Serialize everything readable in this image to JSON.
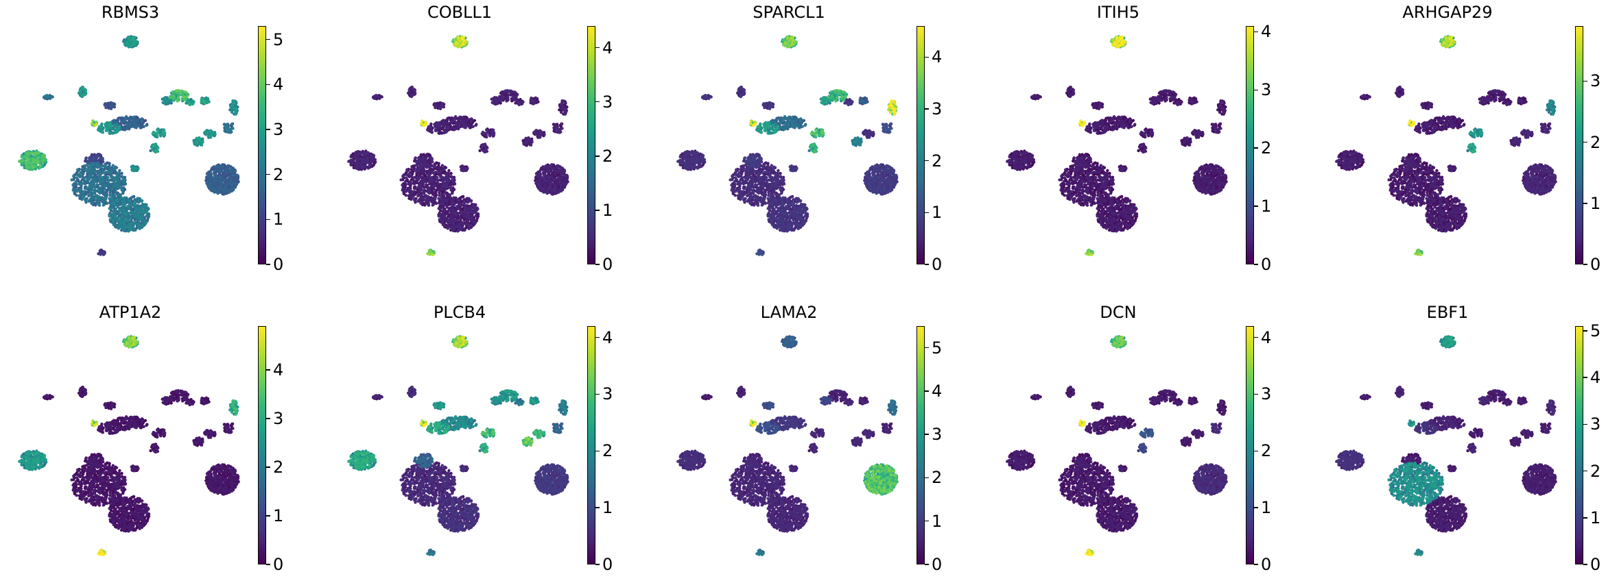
{
  "colors": {
    "background": "#ffffff",
    "cell_floor": "#440154",
    "viridis": [
      "#440154",
      "#482878",
      "#3e4989",
      "#31688e",
      "#26828e",
      "#1f9e89",
      "#35b779",
      "#6ece58",
      "#b5de2b",
      "#fde725"
    ]
  },
  "chart_data": [
    {
      "type": "scatter",
      "title": "RBMS3",
      "colorbar": {
        "vmin": 0,
        "vmax": 5.3,
        "ticks": [
          "0",
          "1",
          "2",
          "3",
          "4",
          "5"
        ]
      },
      "cluster_expression": [
        3.2,
        2.5,
        1.8,
        1.2,
        1.0,
        2.5,
        0.8,
        1.5,
        2.4,
        2.2,
        3.3,
        2.6,
        2.7,
        2.5,
        2.4,
        1.8,
        2.6,
        2.6,
        1.8,
        2.3,
        2.0,
        1.4,
        2.4,
        3.8
      ]
    },
    {
      "type": "scatter",
      "title": "COBLL1",
      "colorbar": {
        "vmin": 0,
        "vmax": 4.4,
        "ticks": [
          "0",
          "1",
          "2",
          "3",
          "4"
        ]
      },
      "cluster_expression": [
        0.3,
        0.3,
        0.3,
        0.3,
        0.3,
        3.5,
        3.2,
        0.3,
        0.3,
        0.3,
        0.3,
        0.3,
        0.3,
        0.3,
        0.3,
        0.3,
        0.3,
        0.3,
        0.3,
        0.3,
        0.3,
        0.3,
        0.3,
        3.9
      ]
    },
    {
      "type": "scatter",
      "title": "SPARCL1",
      "colorbar": {
        "vmin": 0,
        "vmax": 4.6,
        "ticks": [
          "0",
          "1",
          "2",
          "3",
          "4"
        ]
      },
      "cluster_expression": [
        0.5,
        0.5,
        0.6,
        0.6,
        0.7,
        3.2,
        1.0,
        1.5,
        2.2,
        2.2,
        2.7,
        0.6,
        1.2,
        1.8,
        0.5,
        1.0,
        2.8,
        2.6,
        0.5,
        0.6,
        0.6,
        0.7,
        4.0,
        3.7
      ]
    },
    {
      "type": "scatter",
      "title": "ITIH5",
      "colorbar": {
        "vmin": 0,
        "vmax": 4.1,
        "ticks": [
          "0",
          "1",
          "2",
          "3",
          "4"
        ]
      },
      "cluster_expression": [
        0.2,
        0.2,
        0.2,
        0.2,
        0.2,
        3.5,
        3.0,
        0.2,
        0.2,
        0.2,
        0.2,
        0.2,
        0.2,
        0.2,
        0.2,
        0.2,
        0.2,
        0.2,
        0.2,
        0.2,
        0.2,
        0.2,
        0.2,
        3.9
      ]
    },
    {
      "type": "scatter",
      "title": "ARHGAP29",
      "colorbar": {
        "vmin": 0,
        "vmax": 3.9,
        "ticks": [
          "0",
          "1",
          "2",
          "3"
        ]
      },
      "cluster_expression": [
        0.2,
        0.2,
        0.2,
        0.2,
        0.2,
        3.0,
        2.8,
        0.2,
        0.2,
        0.2,
        0.2,
        0.2,
        0.2,
        0.3,
        0.3,
        0.3,
        1.8,
        2.0,
        0.2,
        0.2,
        0.2,
        0.3,
        1.6,
        3.6
      ]
    },
    {
      "type": "scatter",
      "title": "ATP1A2",
      "colorbar": {
        "vmin": 0,
        "vmax": 4.9,
        "ticks": [
          "0",
          "1",
          "2",
          "3",
          "4"
        ]
      },
      "cluster_expression": [
        2.3,
        0.2,
        0.2,
        0.2,
        0.2,
        3.5,
        4.5,
        0.2,
        0.2,
        0.2,
        0.2,
        0.2,
        0.2,
        0.2,
        0.2,
        0.2,
        0.2,
        0.2,
        0.2,
        0.2,
        0.2,
        0.2,
        2.8,
        3.8
      ]
    },
    {
      "type": "scatter",
      "title": "PLCB4",
      "colorbar": {
        "vmin": 0,
        "vmax": 4.2,
        "ticks": [
          "0",
          "1",
          "2",
          "3",
          "4"
        ]
      },
      "cluster_expression": [
        2.2,
        0.4,
        0.3,
        2.0,
        1.2,
        3.2,
        1.5,
        1.8,
        2.2,
        1.8,
        2.0,
        1.5,
        2.0,
        2.8,
        2.4,
        1.2,
        2.5,
        2.3,
        0.4,
        0.4,
        0.5,
        0.6,
        1.6,
        3.4
      ]
    },
    {
      "type": "scatter",
      "title": "LAMA2",
      "colorbar": {
        "vmin": 0,
        "vmax": 5.5,
        "ticks": [
          "0",
          "1",
          "2",
          "3",
          "4",
          "5"
        ]
      },
      "cluster_expression": [
        0.6,
        0.4,
        0.3,
        1.2,
        0.5,
        1.5,
        2.0,
        0.8,
        1.2,
        1.0,
        0.4,
        0.5,
        0.4,
        0.5,
        0.5,
        0.4,
        0.5,
        0.5,
        0.5,
        0.5,
        0.5,
        3.5,
        1.8,
        4.6
      ]
    },
    {
      "type": "scatter",
      "title": "DCN",
      "colorbar": {
        "vmin": 0,
        "vmax": 4.2,
        "ticks": [
          "0",
          "1",
          "2",
          "3",
          "4"
        ]
      },
      "cluster_expression": [
        0.2,
        0.2,
        0.2,
        0.2,
        0.2,
        2.8,
        3.8,
        0.2,
        0.2,
        0.2,
        0.2,
        0.2,
        0.2,
        0.2,
        0.2,
        0.4,
        1.0,
        0.8,
        0.2,
        0.2,
        0.2,
        0.4,
        0.2,
        4.0
      ]
    },
    {
      "type": "scatter",
      "title": "EBF1",
      "colorbar": {
        "vmin": 0,
        "vmax": 5.1,
        "ticks": [
          "0",
          "1",
          "2",
          "3",
          "4",
          "5"
        ]
      },
      "cluster_expression": [
        0.6,
        0.4,
        0.3,
        0.3,
        0.3,
        2.5,
        2.2,
        0.4,
        0.6,
        0.4,
        0.3,
        0.3,
        0.3,
        0.3,
        0.3,
        0.3,
        0.3,
        0.4,
        2.3,
        0.3,
        0.3,
        0.3,
        0.5,
        2.3
      ]
    }
  ]
}
